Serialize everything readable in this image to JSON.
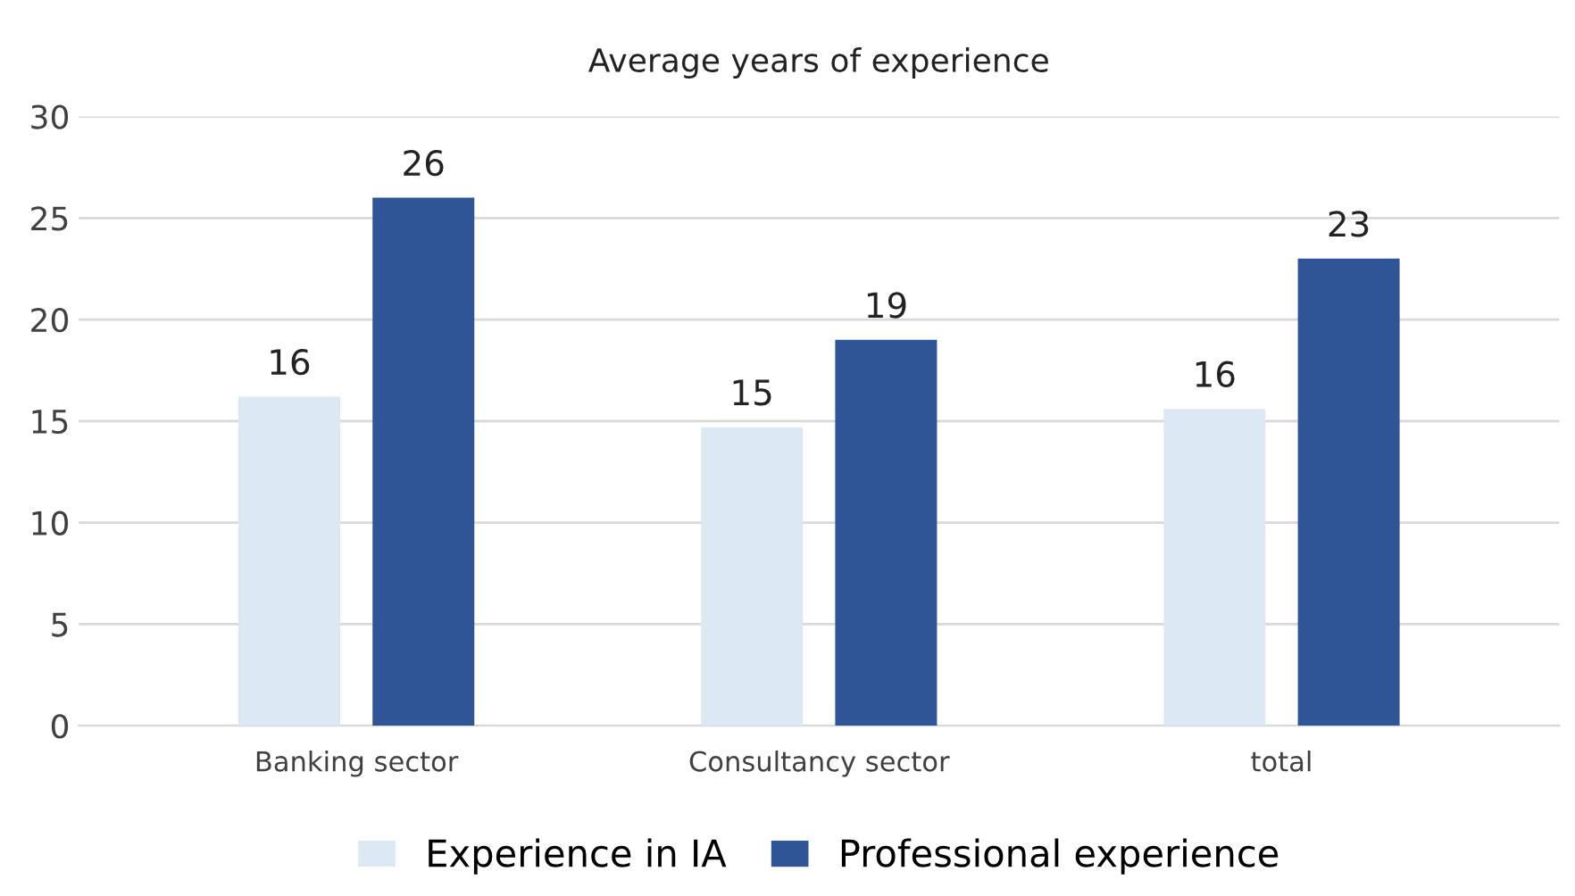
{
  "chart_data": {
    "type": "bar",
    "title": "Average years of experience",
    "categories": [
      "Banking sector",
      "Consultancy sector",
      "total"
    ],
    "series": [
      {
        "name": "Experience in IA",
        "color": "#dde8f5",
        "values": [
          16.2,
          14.7,
          15.6
        ],
        "value_labels": [
          "16",
          "15",
          "16"
        ]
      },
      {
        "name": "Professional experience",
        "color": "#2f5597",
        "values": [
          26,
          19,
          23
        ],
        "value_labels": [
          "26",
          "19",
          "23"
        ]
      }
    ],
    "ylim": [
      0,
      30
    ],
    "yticks": [
      0,
      5,
      10,
      15,
      20,
      25,
      30
    ],
    "grid": "y",
    "legend": "bottom"
  }
}
